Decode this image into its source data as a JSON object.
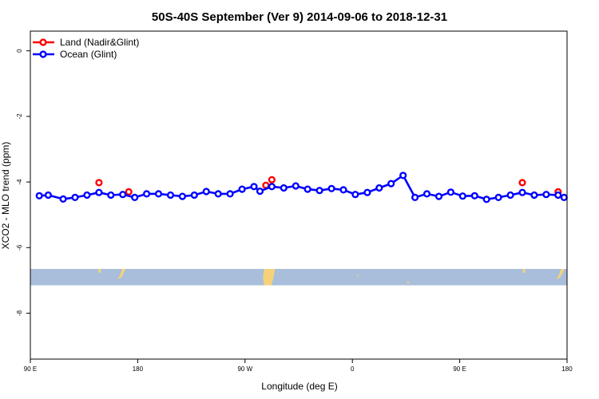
{
  "chart_data": {
    "type": "line",
    "title": "50S-40S September (Ver 9)   2014-09-06 to 2018-12-31",
    "xlabel": "Longitude (deg E)",
    "ylabel": "XCO2 - MLO trend (ppm)",
    "xlim": [
      90,
      540
    ],
    "ylim": [
      -9.4,
      0.6
    ],
    "x_ticks": [
      {
        "value": 90,
        "label": "90 E"
      },
      {
        "value": 180,
        "label": "180"
      },
      {
        "value": 270,
        "label": "90 W"
      },
      {
        "value": 360,
        "label": "0"
      },
      {
        "value": 450,
        "label": "90 E"
      },
      {
        "value": 540,
        "label": "180"
      }
    ],
    "y_ticks": [
      {
        "value": 0,
        "label": "0"
      },
      {
        "value": -2,
        "label": "-2"
      },
      {
        "value": -4,
        "label": "-4"
      },
      {
        "value": -6,
        "label": "-6"
      },
      {
        "value": -8,
        "label": "-8"
      }
    ],
    "grid": false,
    "legend_position": "top-left",
    "map_strip": {
      "y_top": -6.65,
      "y_bottom": -7.15,
      "ocean_color": "#a8bedb",
      "land_color": "#f5d27a"
    },
    "series": [
      {
        "name": "Land (Nadir&Glint)",
        "color": "#ff0000",
        "style": "points",
        "x": [
          147.5,
          172.5,
          287.5,
          292.5,
          502.5,
          532.5
        ],
        "y": [
          -4.02,
          -4.3,
          -4.1,
          -3.93,
          -4.02,
          -4.3
        ]
      },
      {
        "name": "Ocean (Glint)",
        "color": "#0000ff",
        "style": "line+points",
        "x": [
          97.5,
          105,
          117.5,
          127.5,
          137.5,
          147.5,
          157.5,
          167.5,
          177.5,
          187.5,
          197.5,
          207.5,
          217.5,
          227.5,
          237.5,
          247.5,
          257.5,
          267.5,
          277.5,
          282.5,
          292.5,
          302.5,
          312.5,
          322.5,
          332.5,
          342.5,
          352.5,
          362.5,
          372.5,
          382.5,
          392.5,
          402.5,
          412.5,
          422.5,
          432.5,
          442.5,
          452.5,
          462.5,
          472.5,
          482.5,
          492.5,
          502.5,
          512.5,
          522.5,
          532.5,
          537.5
        ],
        "y": [
          -4.42,
          -4.4,
          -4.52,
          -4.47,
          -4.4,
          -4.32,
          -4.4,
          -4.38,
          -4.47,
          -4.36,
          -4.36,
          -4.4,
          -4.44,
          -4.4,
          -4.29,
          -4.36,
          -4.36,
          -4.22,
          -4.14,
          -4.28,
          -4.14,
          -4.18,
          -4.12,
          -4.22,
          -4.26,
          -4.2,
          -4.24,
          -4.38,
          -4.32,
          -4.18,
          -4.05,
          -3.8,
          -4.47,
          -4.36,
          -4.44,
          -4.31,
          -4.43,
          -4.42,
          -4.53,
          -4.47,
          -4.4,
          -4.32,
          -4.4,
          -4.38,
          -4.4,
          -4.47
        ]
      }
    ]
  }
}
